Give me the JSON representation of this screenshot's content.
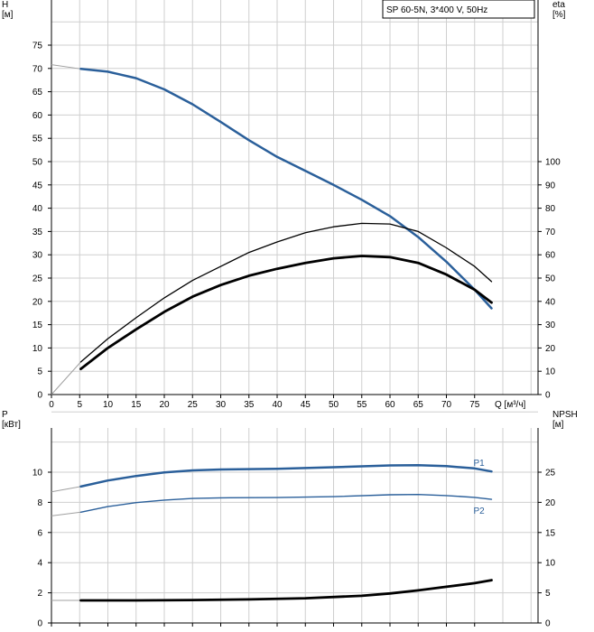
{
  "title": "SP 60-5N, 3*400 V, 50Hz",
  "colors": {
    "blue": "#2a5f9a",
    "black": "#000000",
    "grid": "#cfcfcf",
    "faint": "#a0a0a0"
  },
  "chart_data": [
    {
      "type": "line",
      "x": {
        "label": "Q [м³/ч]",
        "lim": [
          0,
          80
        ],
        "ticks": [
          0,
          5,
          10,
          15,
          20,
          25,
          30,
          35,
          40,
          45,
          50,
          55,
          60,
          65,
          70,
          75
        ]
      },
      "y_left": {
        "label_line1": "H",
        "label_line2": "[м]",
        "lim": [
          0,
          80
        ],
        "ticks": [
          0,
          5,
          10,
          15,
          20,
          25,
          30,
          35,
          40,
          45,
          50,
          55,
          60,
          65,
          70,
          75
        ]
      },
      "y_right": {
        "label_line1": "eta",
        "label_line2": "[%]",
        "lim": [
          0,
          160
        ],
        "ticks": [
          0,
          10,
          20,
          30,
          40,
          50,
          60,
          70,
          80,
          90,
          100
        ]
      },
      "grid": true,
      "series": [
        {
          "axis": "left",
          "color": "blue",
          "width": 2.5,
          "extrapolated_start": [
            0,
            70.8
          ],
          "points": [
            [
              5.2,
              69.9
            ],
            [
              10,
              69.3
            ],
            [
              15,
              67.9
            ],
            [
              20,
              65.5
            ],
            [
              25,
              62.3
            ],
            [
              30,
              58.5
            ],
            [
              35,
              54.6
            ],
            [
              40,
              51.0
            ],
            [
              45,
              48.0
            ],
            [
              50,
              45.0
            ],
            [
              55,
              41.8
            ],
            [
              60,
              38.3
            ],
            [
              65,
              33.8
            ],
            [
              70,
              28.5
            ],
            [
              75,
              22.5
            ],
            [
              78,
              18.5
            ]
          ]
        },
        {
          "axis": "right",
          "color": "black",
          "width": 1.3,
          "extrapolated_start": [
            0,
            0
          ],
          "points": [
            [
              5.2,
              14
            ],
            [
              10,
              24
            ],
            [
              15,
              33
            ],
            [
              20,
              41.5
            ],
            [
              25,
              49
            ],
            [
              30,
              55
            ],
            [
              35,
              61
            ],
            [
              40,
              65.5
            ],
            [
              45,
              69.5
            ],
            [
              50,
              72
            ],
            [
              55,
              73.5
            ],
            [
              60,
              73.2
            ],
            [
              65,
              70
            ],
            [
              70,
              63
            ],
            [
              75,
              55
            ],
            [
              78,
              48.5
            ]
          ]
        },
        {
          "axis": "right",
          "color": "black",
          "width": 2.8,
          "points": [
            [
              5.2,
              11
            ],
            [
              10,
              20
            ],
            [
              15,
              28
            ],
            [
              20,
              35.5
            ],
            [
              25,
              42
            ],
            [
              30,
              47
            ],
            [
              35,
              51
            ],
            [
              40,
              54
            ],
            [
              45,
              56.5
            ],
            [
              50,
              58.5
            ],
            [
              55,
              59.5
            ],
            [
              60,
              59
            ],
            [
              65,
              56.5
            ],
            [
              70,
              51.5
            ],
            [
              75,
              45
            ],
            [
              78,
              39.5
            ]
          ]
        }
      ]
    },
    {
      "type": "line",
      "x": {
        "lim": [
          0,
          80
        ],
        "ticks": [
          0,
          5,
          10,
          15,
          20,
          25,
          30,
          35,
          40,
          45,
          50,
          55,
          60,
          65,
          70,
          75
        ]
      },
      "y_left": {
        "label_line1": "P",
        "label_line2": "[кВт]",
        "lim": [
          0,
          14
        ],
        "ticks": [
          0,
          2,
          4,
          6,
          8,
          10
        ]
      },
      "y_right": {
        "label_line1": "NPSH",
        "label_line2": "[м]",
        "lim": [
          0,
          35
        ],
        "ticks": [
          0,
          5,
          10,
          15,
          20,
          25
        ]
      },
      "grid": true,
      "series": [
        {
          "name": "P1",
          "axis": "left",
          "color": "blue",
          "width": 2.5,
          "extrapolated_start": [
            0,
            8.7
          ],
          "points": [
            [
              5.2,
              9.05
            ],
            [
              10,
              9.45
            ],
            [
              15,
              9.75
            ],
            [
              20,
              9.98
            ],
            [
              25,
              10.12
            ],
            [
              30,
              10.18
            ],
            [
              40,
              10.23
            ],
            [
              50,
              10.33
            ],
            [
              60,
              10.45
            ],
            [
              65,
              10.47
            ],
            [
              70,
              10.4
            ],
            [
              75,
              10.25
            ],
            [
              78,
              10.05
            ]
          ]
        },
        {
          "name": "P2",
          "axis": "left",
          "color": "blue",
          "width": 1.4,
          "extrapolated_start": [
            0,
            7.1
          ],
          "points": [
            [
              5.2,
              7.35
            ],
            [
              10,
              7.72
            ],
            [
              15,
              7.98
            ],
            [
              20,
              8.15
            ],
            [
              25,
              8.26
            ],
            [
              30,
              8.3
            ],
            [
              40,
              8.32
            ],
            [
              50,
              8.38
            ],
            [
              60,
              8.5
            ],
            [
              65,
              8.52
            ],
            [
              70,
              8.45
            ],
            [
              75,
              8.33
            ],
            [
              78,
              8.2
            ]
          ]
        },
        {
          "axis": "right",
          "color": "black",
          "width": 2.8,
          "extrapolated_start": [
            0,
            3.75
          ],
          "points": [
            [
              5.2,
              3.75
            ],
            [
              15,
              3.75
            ],
            [
              25,
              3.8
            ],
            [
              35,
              3.9
            ],
            [
              45,
              4.1
            ],
            [
              55,
              4.5
            ],
            [
              60,
              4.9
            ],
            [
              65,
              5.4
            ],
            [
              70,
              6.0
            ],
            [
              75,
              6.6
            ],
            [
              78,
              7.1
            ]
          ]
        }
      ]
    }
  ]
}
